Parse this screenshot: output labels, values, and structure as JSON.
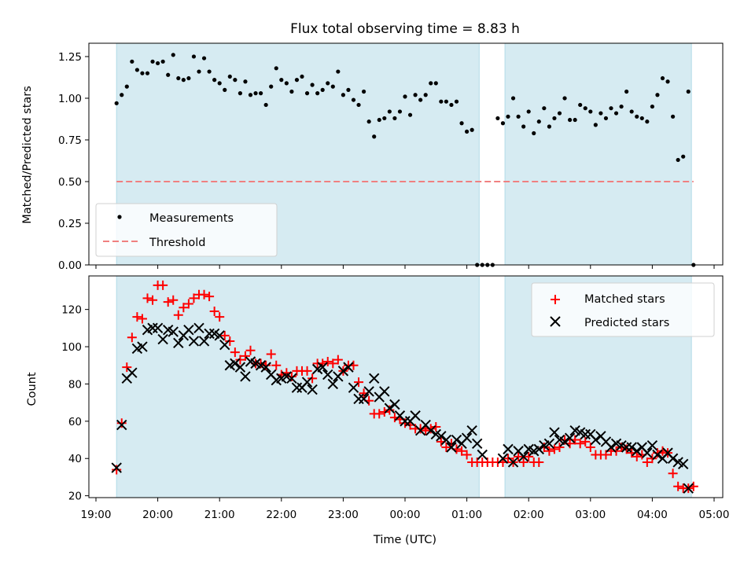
{
  "chart_data": [
    {
      "type": "scatter",
      "title": "Flux total observing time = 8.83 h",
      "xlabel": "",
      "ylabel": "Matched/Predicted stars",
      "ylim": [
        0,
        1.33
      ],
      "yticks": [
        "0.00",
        "0.25",
        "0.50",
        "0.75",
        "1.00",
        "1.25"
      ],
      "ytick_values": [
        0,
        0.25,
        0.5,
        0.75,
        1.0,
        1.25
      ],
      "legend_position": "lower-left",
      "series": [
        {
          "name": "Measurements",
          "marker": "dot",
          "color": "#000000",
          "x": [
            "19:20",
            "19:25",
            "19:30",
            "19:35",
            "19:40",
            "19:45",
            "19:50",
            "19:55",
            "20:00",
            "20:05",
            "20:10",
            "20:15",
            "20:20",
            "20:25",
            "20:30",
            "20:35",
            "20:40",
            "20:45",
            "20:50",
            "20:55",
            "21:00",
            "21:05",
            "21:10",
            "21:15",
            "21:20",
            "21:25",
            "21:30",
            "21:35",
            "21:40",
            "21:45",
            "21:50",
            "21:55",
            "22:00",
            "22:05",
            "22:10",
            "22:15",
            "22:20",
            "22:25",
            "22:30",
            "22:35",
            "22:40",
            "22:45",
            "22:50",
            "22:55",
            "23:00",
            "23:05",
            "23:10",
            "23:15",
            "23:20",
            "23:25",
            "23:30",
            "23:35",
            "23:40",
            "23:45",
            "23:50",
            "23:55",
            "00:00",
            "00:05",
            "00:10",
            "00:15",
            "00:20",
            "00:25",
            "00:30",
            "00:35",
            "00:40",
            "00:45",
            "00:50",
            "00:55",
            "01:00",
            "01:05",
            "01:10",
            "01:15",
            "01:20",
            "01:25",
            "01:30",
            "01:35",
            "01:40",
            "01:45",
            "01:50",
            "01:55",
            "02:00",
            "02:05",
            "02:10",
            "02:15",
            "02:20",
            "02:25",
            "02:30",
            "02:35",
            "02:40",
            "02:45",
            "02:50",
            "02:55",
            "03:00",
            "03:05",
            "03:10",
            "03:15",
            "03:20",
            "03:25",
            "03:30",
            "03:35",
            "03:40",
            "03:45",
            "03:50",
            "03:55",
            "04:00",
            "04:05",
            "04:10",
            "04:15",
            "04:20",
            "04:25",
            "04:30",
            "04:35",
            "04:40"
          ],
          "y": [
            0.97,
            1.02,
            1.07,
            1.22,
            1.17,
            1.15,
            1.15,
            1.22,
            1.21,
            1.22,
            1.14,
            1.26,
            1.12,
            1.11,
            1.12,
            1.25,
            1.16,
            1.24,
            1.16,
            1.11,
            1.09,
            1.05,
            1.13,
            1.11,
            1.03,
            1.1,
            1.02,
            1.03,
            1.03,
            0.96,
            1.07,
            1.18,
            1.11,
            1.09,
            1.04,
            1.11,
            1.13,
            1.03,
            1.08,
            1.03,
            1.05,
            1.09,
            1.07,
            1.16,
            1.02,
            1.05,
            0.99,
            0.96,
            1.04,
            0.86,
            0.77,
            0.87,
            0.88,
            0.92,
            0.88,
            0.92,
            1.01,
            0.9,
            1.02,
            0.99,
            1.02,
            1.09,
            1.09,
            0.98,
            0.98,
            0.96,
            0.98,
            0.85,
            0.8,
            0.81,
            0.0,
            0.0,
            0.0,
            0.0,
            0.88,
            0.85,
            0.89,
            1.0,
            0.89,
            0.83,
            0.92,
            0.79,
            0.86,
            0.94,
            0.83,
            0.88,
            0.91,
            1.0,
            0.87,
            0.87,
            0.96,
            0.94,
            0.92,
            0.84,
            0.91,
            0.88,
            0.94,
            0.91,
            0.95,
            1.04,
            0.92,
            0.89,
            0.88,
            0.86,
            0.95,
            1.02,
            1.12,
            1.1,
            0.89,
            0.63,
            0.65,
            1.04,
            0.0
          ]
        },
        {
          "name": "Threshold",
          "marker": "dashed-line",
          "color": "#f08080",
          "x": [
            "19:20",
            "04:40"
          ],
          "y": [
            0.5,
            0.5
          ]
        }
      ]
    },
    {
      "type": "scatter",
      "title": "",
      "xlabel": "Time (UTC)",
      "ylabel": "Count",
      "ylim": [
        19,
        138
      ],
      "yticks": [
        "20",
        "40",
        "60",
        "80",
        "100",
        "120"
      ],
      "ytick_values": [
        20,
        40,
        60,
        80,
        100,
        120
      ],
      "legend_position": "top-right",
      "series": [
        {
          "name": "Matched stars",
          "marker": "plus",
          "color": "#ff0000",
          "x": [
            "19:20",
            "19:25",
            "19:30",
            "19:35",
            "19:40",
            "19:45",
            "19:50",
            "19:55",
            "20:00",
            "20:05",
            "20:10",
            "20:15",
            "20:20",
            "20:25",
            "20:30",
            "20:35",
            "20:40",
            "20:45",
            "20:50",
            "20:55",
            "21:00",
            "21:05",
            "21:10",
            "21:15",
            "21:20",
            "21:25",
            "21:30",
            "21:35",
            "21:40",
            "21:45",
            "21:50",
            "21:55",
            "22:00",
            "22:05",
            "22:10",
            "22:15",
            "22:20",
            "22:25",
            "22:30",
            "22:35",
            "22:40",
            "22:45",
            "22:50",
            "22:55",
            "23:00",
            "23:05",
            "23:10",
            "23:15",
            "23:20",
            "23:25",
            "23:30",
            "23:35",
            "23:40",
            "23:45",
            "23:50",
            "23:55",
            "00:00",
            "00:05",
            "00:10",
            "00:15",
            "00:20",
            "00:25",
            "00:30",
            "00:35",
            "00:40",
            "00:45",
            "00:50",
            "00:55",
            "01:00",
            "01:05",
            "01:10",
            "01:15",
            "01:20",
            "01:25",
            "01:30",
            "01:35",
            "01:40",
            "01:45",
            "01:50",
            "01:55",
            "02:00",
            "02:05",
            "02:10",
            "02:15",
            "02:20",
            "02:25",
            "02:30",
            "02:35",
            "02:40",
            "02:45",
            "02:50",
            "02:55",
            "03:00",
            "03:05",
            "03:10",
            "03:15",
            "03:20",
            "03:25",
            "03:30",
            "03:35",
            "03:40",
            "03:45",
            "03:50",
            "03:55",
            "04:00",
            "04:05",
            "04:10",
            "04:15",
            "04:20",
            "04:25",
            "04:30",
            "04:35",
            "04:40"
          ],
          "y": [
            34,
            59,
            89,
            105,
            116,
            115,
            126,
            125,
            133,
            133,
            124,
            125,
            117,
            121,
            123,
            126,
            128,
            128,
            127,
            119,
            116,
            106,
            103,
            97,
            93,
            95,
            98,
            91,
            91,
            90,
            96,
            90,
            85,
            86,
            84,
            87,
            87,
            87,
            83,
            91,
            91,
            92,
            91,
            93,
            87,
            90,
            90,
            81,
            75,
            71,
            64,
            64,
            65,
            66,
            62,
            61,
            59,
            58,
            56,
            56,
            55,
            56,
            57,
            49,
            46,
            48,
            45,
            44,
            42,
            38,
            38,
            38,
            38,
            38,
            38,
            38,
            40,
            38,
            41,
            38,
            41,
            38,
            38,
            46,
            44,
            45,
            46,
            50,
            48,
            50,
            48,
            49,
            46,
            42,
            42,
            42,
            44,
            44,
            46,
            45,
            43,
            41,
            42,
            38,
            40,
            43,
            44,
            43,
            32,
            25,
            24,
            24,
            25
          ]
        },
        {
          "name": "Predicted stars",
          "marker": "x",
          "color": "#000000",
          "x": [
            "19:20",
            "19:25",
            "19:30",
            "19:35",
            "19:40",
            "19:45",
            "19:50",
            "19:55",
            "20:00",
            "20:05",
            "20:10",
            "20:15",
            "20:20",
            "20:25",
            "20:30",
            "20:35",
            "20:40",
            "20:45",
            "20:50",
            "20:55",
            "21:00",
            "21:05",
            "21:10",
            "21:15",
            "21:20",
            "21:25",
            "21:30",
            "21:35",
            "21:40",
            "21:45",
            "21:50",
            "21:55",
            "22:00",
            "22:05",
            "22:10",
            "22:15",
            "22:20",
            "22:25",
            "22:30",
            "22:35",
            "22:40",
            "22:45",
            "22:50",
            "22:55",
            "23:00",
            "23:05",
            "23:10",
            "23:15",
            "23:20",
            "23:25",
            "23:30",
            "23:35",
            "23:40",
            "23:45",
            "23:50",
            "23:55",
            "00:00",
            "00:05",
            "00:10",
            "00:15",
            "00:20",
            "00:25",
            "00:30",
            "00:35",
            "00:40",
            "00:45",
            "00:50",
            "00:55",
            "01:00",
            "01:05",
            "01:10",
            "01:15",
            "01:35",
            "01:40",
            "01:45",
            "01:50",
            "01:55",
            "02:00",
            "02:05",
            "02:10",
            "02:15",
            "02:20",
            "02:25",
            "02:30",
            "02:35",
            "02:40",
            "02:45",
            "02:50",
            "02:55",
            "03:00",
            "03:05",
            "03:10",
            "03:15",
            "03:20",
            "03:25",
            "03:30",
            "03:35",
            "03:40",
            "03:45",
            "03:50",
            "03:55",
            "04:00",
            "04:05",
            "04:10",
            "04:15",
            "04:20",
            "04:25",
            "04:30",
            "04:35"
          ],
          "y": [
            35,
            58,
            83,
            86,
            99,
            100,
            109,
            110,
            110,
            104,
            109,
            108,
            102,
            106,
            109,
            103,
            110,
            103,
            107,
            107,
            106,
            101,
            90,
            91,
            89,
            84,
            92,
            91,
            90,
            89,
            85,
            82,
            83,
            84,
            83,
            78,
            78,
            81,
            77,
            88,
            89,
            85,
            80,
            84,
            87,
            89,
            78,
            72,
            72,
            76,
            83,
            73,
            76,
            67,
            69,
            63,
            60,
            60,
            63,
            55,
            58,
            55,
            53,
            52,
            50,
            46,
            50,
            48,
            51,
            55,
            48,
            42,
            40,
            45,
            38,
            44,
            41,
            45,
            44,
            45,
            47,
            48,
            54,
            50,
            49,
            51,
            55,
            54,
            53,
            53,
            50,
            52,
            49,
            46,
            48,
            47,
            46,
            46,
            44,
            46,
            43,
            47,
            42,
            40,
            43,
            40,
            38,
            37,
            24
          ]
        }
      ]
    }
  ],
  "x_axis": {
    "ticks": [
      "19:00",
      "20:00",
      "21:00",
      "22:00",
      "23:00",
      "00:00",
      "01:00",
      "02:00",
      "03:00",
      "04:00",
      "05:00"
    ]
  },
  "shaded_intervals": [
    {
      "start": "19:20",
      "end": "01:12",
      "color": "#add8e6"
    },
    {
      "start": "01:37",
      "end": "04:38",
      "color": "#add8e6"
    }
  ]
}
